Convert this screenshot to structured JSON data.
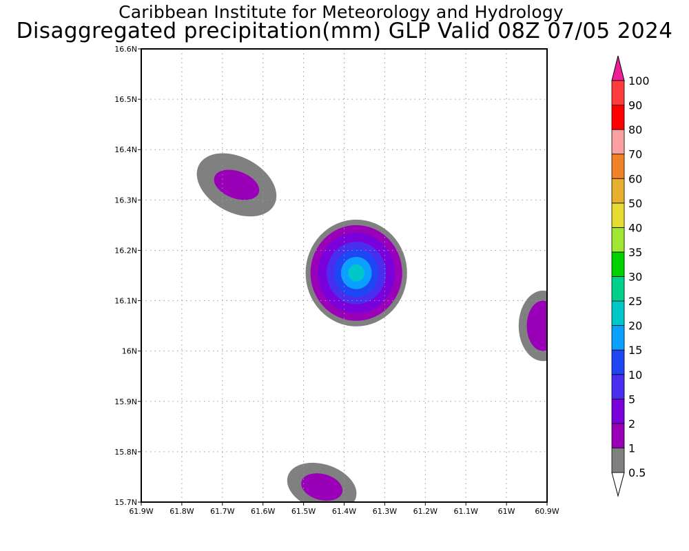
{
  "title": {
    "line1": "Caribbean Institute for Meteorology and Hydrology",
    "line2": "Disaggregated precipitation(mm) GLP Valid 08Z 07/05 2024"
  },
  "map": {
    "lon_range": [
      -61.9,
      -60.9
    ],
    "lat_range": [
      15.7,
      16.6
    ],
    "x_ticks": [
      {
        "lon": -61.9,
        "label": "61.9W"
      },
      {
        "lon": -61.8,
        "label": "61.8W"
      },
      {
        "lon": -61.7,
        "label": "61.7W"
      },
      {
        "lon": -61.6,
        "label": "61.6W"
      },
      {
        "lon": -61.5,
        "label": "61.5W"
      },
      {
        "lon": -61.4,
        "label": "61.4W"
      },
      {
        "lon": -61.3,
        "label": "61.3W"
      },
      {
        "lon": -61.2,
        "label": "61.2W"
      },
      {
        "lon": -61.1,
        "label": "61.1W"
      },
      {
        "lon": -61.0,
        "label": "61W"
      },
      {
        "lon": -60.9,
        "label": "60.9W"
      }
    ],
    "y_ticks": [
      {
        "lat": 16.6,
        "label": "16.6N"
      },
      {
        "lat": 16.5,
        "label": "16.5N"
      },
      {
        "lat": 16.4,
        "label": "16.4N"
      },
      {
        "lat": 16.3,
        "label": "16.3N"
      },
      {
        "lat": 16.2,
        "label": "16.2N"
      },
      {
        "lat": 16.1,
        "label": "16.1N"
      },
      {
        "lat": 16.0,
        "label": "16N"
      },
      {
        "lat": 15.9,
        "label": "15.9N"
      },
      {
        "lat": 15.8,
        "label": "15.8N"
      },
      {
        "lat": 15.7,
        "label": "15.7N"
      }
    ],
    "grid": true
  },
  "precip_cells": [
    {
      "name": "cell-north-west",
      "lon": -61.665,
      "lat": 16.33,
      "layers": [
        {
          "color": "#808080",
          "rlon": 0.105,
          "rlat": 0.055,
          "rot": 28
        },
        {
          "color": "#9900b8",
          "rlon": 0.058,
          "rlat": 0.027,
          "rot": 20
        }
      ]
    },
    {
      "name": "cell-central",
      "lon": -61.37,
      "lat": 16.155,
      "layers": [
        {
          "color": "#808080",
          "rlon": 0.125,
          "rlat": 0.106,
          "rot": 0
        },
        {
          "color": "#9900b8",
          "rlon": 0.113,
          "rlat": 0.095,
          "rot": 0
        },
        {
          "color": "#7a00dc",
          "rlon": 0.095,
          "rlat": 0.08,
          "rot": 0
        },
        {
          "color": "#4a2ef0",
          "rlon": 0.073,
          "rlat": 0.062,
          "rot": 0
        },
        {
          "color": "#1e46f5",
          "rlon": 0.055,
          "rlat": 0.048,
          "rot": 0
        },
        {
          "color": "#0aa0ff",
          "rlon": 0.038,
          "rlat": 0.032,
          "rot": 0
        },
        {
          "color": "#00c8c8",
          "rlon": 0.02,
          "rlat": 0.017,
          "rot": 0
        }
      ]
    },
    {
      "name": "cell-east-edge",
      "lon": -60.91,
      "lat": 16.05,
      "layers": [
        {
          "color": "#808080",
          "rlon": 0.06,
          "rlat": 0.07,
          "rot": 0
        },
        {
          "color": "#9900b8",
          "rlon": 0.04,
          "rlat": 0.05,
          "rot": 0
        }
      ]
    },
    {
      "name": "cell-south",
      "lon": -61.455,
      "lat": 15.73,
      "layers": [
        {
          "color": "#808080",
          "rlon": 0.088,
          "rlat": 0.045,
          "rot": 18
        },
        {
          "color": "#9900b8",
          "rlon": 0.052,
          "rlat": 0.026,
          "rot": 15
        }
      ]
    }
  ],
  "colorbar": {
    "levels": [
      "0.5",
      "1",
      "2",
      "5",
      "10",
      "15",
      "20",
      "25",
      "30",
      "35",
      "40",
      "50",
      "60",
      "70",
      "80",
      "90",
      "100"
    ],
    "colors": [
      "#808080",
      "#9900b8",
      "#7a00dc",
      "#4a2ef0",
      "#1e46f5",
      "#0aa0ff",
      "#00c8c8",
      "#00d08c",
      "#00d200",
      "#a0e632",
      "#e6dc32",
      "#e6af2d",
      "#f08228",
      "#faa0a0",
      "#ff0000",
      "#ff3c3c"
    ],
    "top_arrow_color": "#ee1e96",
    "bottom_arrow_color": "#ffffff"
  }
}
